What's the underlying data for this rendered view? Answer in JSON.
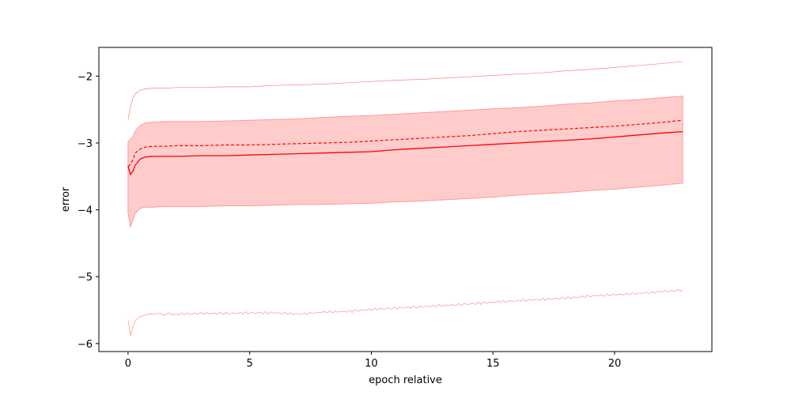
{
  "chart_data": {
    "type": "line",
    "title": "",
    "xlabel": "epoch relative",
    "ylabel": "error",
    "xlim": [
      -1.2,
      24.0
    ],
    "ylim": [
      -6.12,
      -1.57
    ],
    "xticks": [
      0,
      5,
      10,
      15,
      20
    ],
    "yticks": [
      -2,
      -3,
      -4,
      -5,
      -6
    ],
    "xtick_labels": [
      "0",
      "5",
      "10",
      "15",
      "20"
    ],
    "ytick_labels": [
      "−2",
      "−3",
      "−4",
      "−5",
      "−6"
    ],
    "grid": false,
    "legend": "none",
    "colors": {
      "line": "#ff0000",
      "band_fill": "#ffcccc",
      "band_edge": "#ff9999",
      "extreme": "#ff8080"
    },
    "x": [
      0,
      0.1,
      0.2,
      0.3,
      0.5,
      0.7,
      1.0,
      1.5,
      2.0,
      3,
      4,
      5,
      6,
      7,
      8,
      9,
      10,
      11,
      12,
      13,
      14,
      15,
      16,
      17,
      18,
      19,
      20,
      21,
      22,
      22.8
    ],
    "series": [
      {
        "role": "mean",
        "style": "solid",
        "values": [
          -3.35,
          -3.47,
          -3.42,
          -3.33,
          -3.24,
          -3.21,
          -3.2,
          -3.2,
          -3.2,
          -3.19,
          -3.19,
          -3.18,
          -3.17,
          -3.16,
          -3.15,
          -3.14,
          -3.13,
          -3.1,
          -3.08,
          -3.06,
          -3.04,
          -3.02,
          -3.0,
          -2.98,
          -2.96,
          -2.94,
          -2.91,
          -2.88,
          -2.85,
          -2.83
        ]
      },
      {
        "role": "median",
        "style": "dashed",
        "values": [
          -3.35,
          -3.32,
          -3.25,
          -3.15,
          -3.09,
          -3.06,
          -3.05,
          -3.05,
          -3.04,
          -3.04,
          -3.03,
          -3.03,
          -3.02,
          -3.01,
          -3.0,
          -2.99,
          -2.97,
          -2.95,
          -2.93,
          -2.91,
          -2.89,
          -2.86,
          -2.83,
          -2.81,
          -2.79,
          -2.77,
          -2.75,
          -2.72,
          -2.69,
          -2.66
        ]
      },
      {
        "role": "band-upper",
        "style": "fill",
        "values": [
          -2.98,
          -2.95,
          -2.9,
          -2.82,
          -2.74,
          -2.7,
          -2.69,
          -2.68,
          -2.68,
          -2.68,
          -2.67,
          -2.66,
          -2.65,
          -2.64,
          -2.62,
          -2.6,
          -2.59,
          -2.57,
          -2.55,
          -2.53,
          -2.51,
          -2.49,
          -2.47,
          -2.45,
          -2.42,
          -2.4,
          -2.37,
          -2.35,
          -2.32,
          -2.3
        ]
      },
      {
        "role": "band-lower",
        "style": "fill",
        "values": [
          -4.05,
          -4.25,
          -4.15,
          -4.05,
          -3.98,
          -3.96,
          -3.96,
          -3.95,
          -3.95,
          -3.95,
          -3.94,
          -3.94,
          -3.93,
          -3.92,
          -3.92,
          -3.91,
          -3.9,
          -3.88,
          -3.87,
          -3.85,
          -3.83,
          -3.81,
          -3.78,
          -3.76,
          -3.74,
          -3.71,
          -3.69,
          -3.66,
          -3.63,
          -3.6
        ]
      },
      {
        "role": "max",
        "style": "thin",
        "values": [
          -2.65,
          -2.45,
          -2.33,
          -2.26,
          -2.21,
          -2.19,
          -2.18,
          -2.18,
          -2.17,
          -2.17,
          -2.16,
          -2.16,
          -2.14,
          -2.13,
          -2.12,
          -2.1,
          -2.08,
          -2.06,
          -2.05,
          -2.03,
          -2.01,
          -1.99,
          -1.97,
          -1.95,
          -1.92,
          -1.9,
          -1.87,
          -1.84,
          -1.81,
          -1.78
        ]
      },
      {
        "role": "min",
        "style": "thin-noisy",
        "values": [
          -5.65,
          -5.88,
          -5.75,
          -5.65,
          -5.6,
          -5.57,
          -5.55,
          -5.56,
          -5.56,
          -5.55,
          -5.55,
          -5.54,
          -5.54,
          -5.56,
          -5.53,
          -5.52,
          -5.49,
          -5.47,
          -5.45,
          -5.43,
          -5.41,
          -5.38,
          -5.36,
          -5.34,
          -5.32,
          -5.29,
          -5.27,
          -5.25,
          -5.22,
          -5.2
        ]
      }
    ]
  }
}
